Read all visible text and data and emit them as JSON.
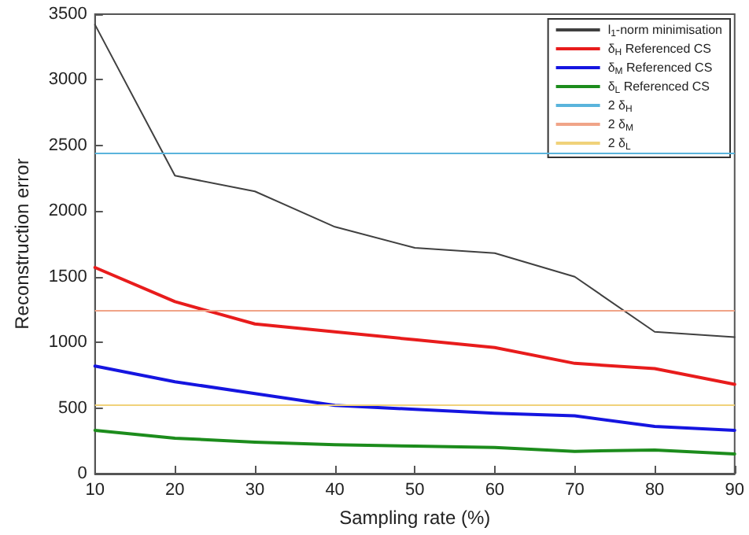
{
  "chart_data": {
    "type": "line",
    "xlabel": "Sampling rate (%)",
    "ylabel": "Reconstruction error",
    "x": [
      10,
      20,
      30,
      40,
      50,
      60,
      70,
      80,
      90
    ],
    "series": [
      {
        "name": "l$_{1}$-norm minimisation",
        "color": "#404040",
        "values": [
          3420,
          2270,
          2150,
          1880,
          1720,
          1680,
          1500,
          1080,
          1040
        ]
      },
      {
        "name": "δ$_{H}$ Referenced CS",
        "color": "#e81c1c",
        "values": [
          1570,
          1310,
          1140,
          1080,
          1020,
          960,
          840,
          800,
          680
        ]
      },
      {
        "name": "δ$_{M}$ Referenced CS",
        "color": "#1515e0",
        "values": [
          820,
          700,
          610,
          520,
          490,
          460,
          440,
          360,
          330
        ]
      },
      {
        "name": "δ$_{L}$ Referenced CS",
        "color": "#1c8c1c",
        "values": [
          330,
          270,
          240,
          220,
          210,
          200,
          170,
          180,
          150
        ]
      }
    ],
    "ref_lines": [
      {
        "axis": "y",
        "value": 2440,
        "label": "2 δ$_{H}$",
        "color": "#5ab4dc"
      },
      {
        "axis": "y",
        "value": 1240,
        "label": "2 δ$_{M}$",
        "color": "#f0a488"
      },
      {
        "axis": "y",
        "value": 520,
        "label": "2 δ$_{L}$",
        "color": "#f0d27a"
      }
    ],
    "xlim": [
      10,
      90
    ],
    "xticks": [
      10,
      20,
      30,
      40,
      50,
      60,
      70,
      80,
      90
    ],
    "ylim": [
      0,
      3500
    ],
    "yticks": [
      0,
      500,
      1000,
      1500,
      2000,
      2500,
      3000,
      3500
    ],
    "grid": false,
    "legend": "top right",
    "marker": "none",
    "line_style": "solid"
  }
}
